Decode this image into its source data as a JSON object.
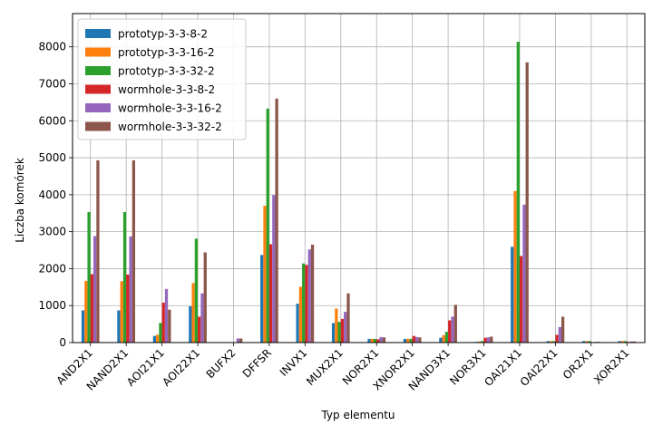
{
  "chart_data": {
    "type": "bar",
    "title": "",
    "xlabel": "Typ elementu",
    "ylabel": "Liczba komórek",
    "ylim": [
      0,
      8900
    ],
    "yticks": [
      0,
      1000,
      2000,
      3000,
      4000,
      5000,
      6000,
      7000,
      8000
    ],
    "grid": true,
    "legend_position": "top-left",
    "categories": [
      "AND2X1",
      "NAND2X1",
      "AOI21X1",
      "AOI22X1",
      "BUFX2",
      "DFFSR",
      "INVX1",
      "MUX2X1",
      "NOR2X1",
      "XNOR2X1",
      "NAND3X1",
      "NOR3X1",
      "OAI21X1",
      "OAI22X1",
      "OR2X1",
      "XOR2X1"
    ],
    "series": [
      {
        "name": "prototyp-3-3-8-2",
        "color": "#1f77b4",
        "values": [
          870,
          870,
          180,
          980,
          0,
          2370,
          1050,
          530,
          100,
          100,
          130,
          20,
          2590,
          40,
          40,
          40
        ]
      },
      {
        "name": "prototyp-3-3-16-2",
        "color": "#ff7f0e",
        "values": [
          1670,
          1660,
          210,
          1610,
          0,
          3700,
          1510,
          920,
          100,
          100,
          200,
          30,
          4100,
          40,
          40,
          40
        ]
      },
      {
        "name": "prototyp-3-3-32-2",
        "color": "#2ca02c",
        "values": [
          3530,
          3530,
          530,
          2810,
          0,
          6330,
          2140,
          560,
          100,
          100,
          290,
          40,
          8140,
          40,
          40,
          40
        ]
      },
      {
        "name": "wormhole-3-3-8-2",
        "color": "#d62728",
        "values": [
          1850,
          1840,
          1080,
          700,
          0,
          2660,
          2100,
          640,
          90,
          180,
          600,
          130,
          2340,
          210,
          10,
          20
        ]
      },
      {
        "name": "wormhole-3-3-16-2",
        "color": "#9467bd",
        "values": [
          2880,
          2870,
          1450,
          1330,
          110,
          3990,
          2520,
          830,
          150,
          150,
          700,
          140,
          3730,
          420,
          20,
          30
        ]
      },
      {
        "name": "wormhole-3-3-32-2",
        "color": "#8c564b",
        "values": [
          4930,
          4930,
          890,
          2440,
          110,
          6600,
          2650,
          1330,
          140,
          140,
          1020,
          160,
          7580,
          700,
          20,
          30
        ]
      }
    ]
  }
}
